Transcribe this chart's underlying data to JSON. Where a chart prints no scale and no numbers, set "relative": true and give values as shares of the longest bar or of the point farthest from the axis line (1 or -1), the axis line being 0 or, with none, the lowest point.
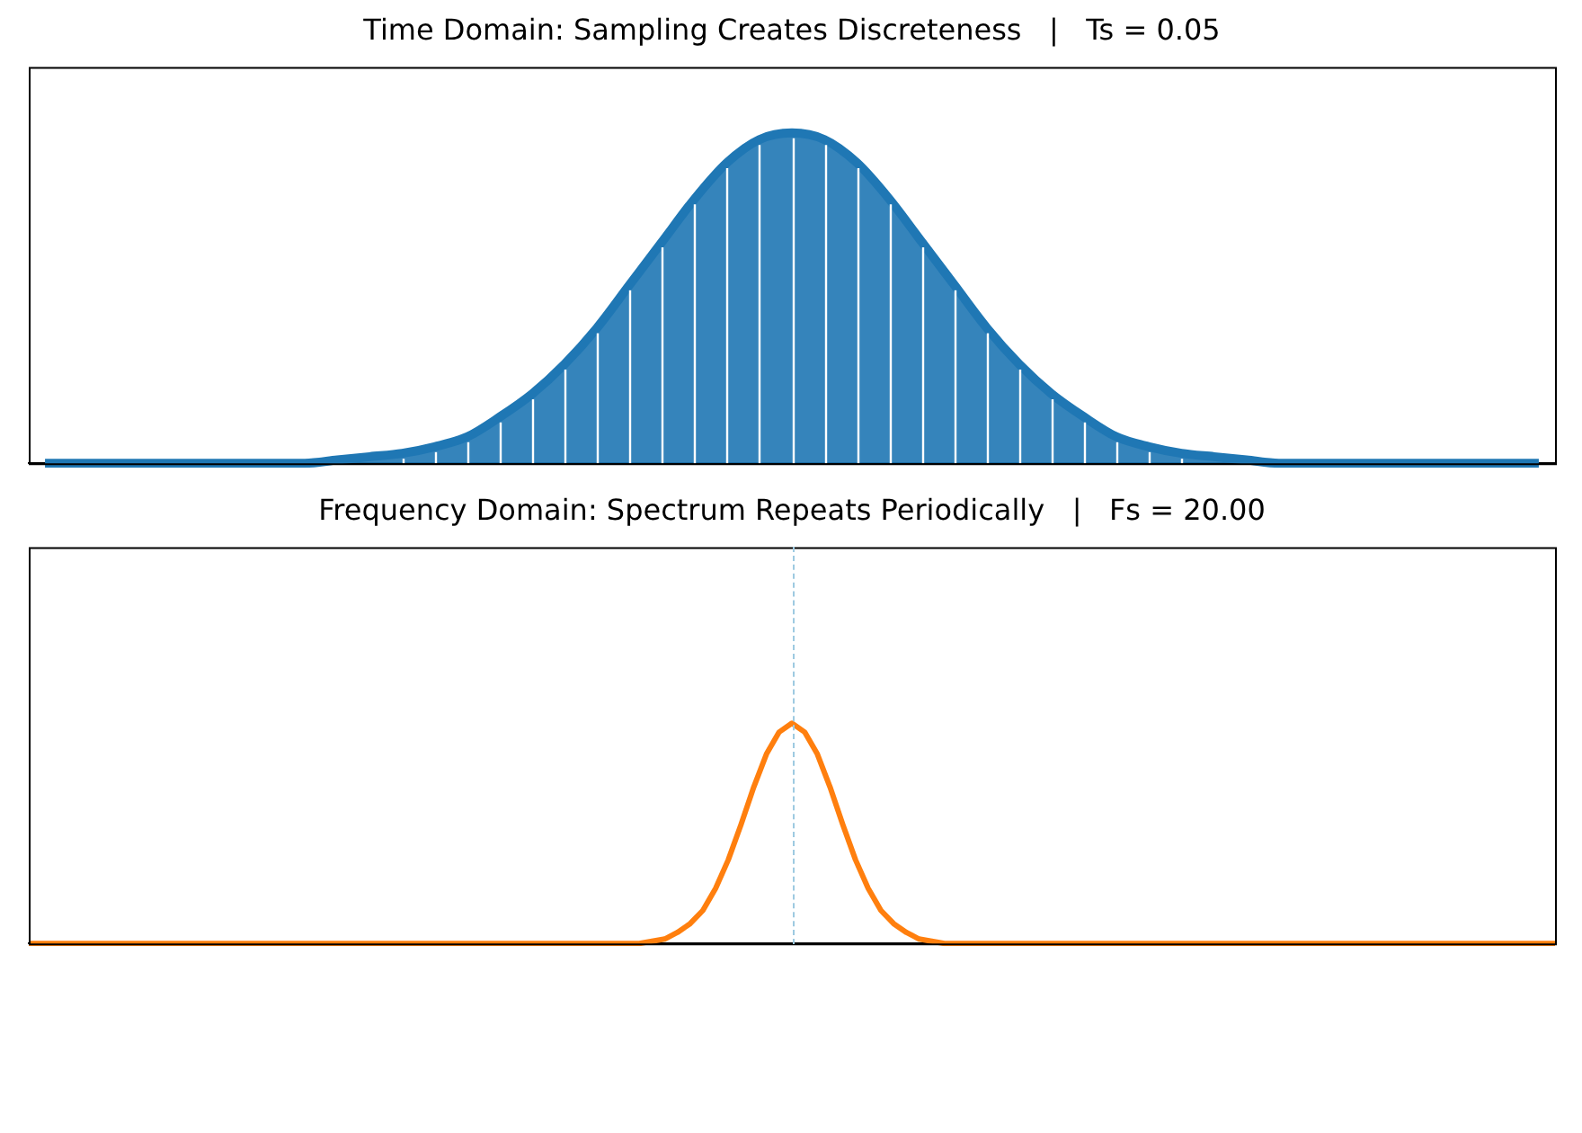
{
  "chart_data": [
    {
      "type": "area",
      "title": "Time Domain: Sampling Creates Discreteness   |   Ts = 0.05",
      "relative": true,
      "grid": "x",
      "color": "#1f77b4",
      "categories": [
        null,
        null,
        null,
        null,
        null,
        null,
        null,
        null,
        null,
        null,
        null,
        null,
        null,
        null,
        null,
        null,
        null,
        null,
        null,
        null,
        null,
        null,
        null,
        null,
        null,
        null,
        null,
        null,
        null,
        null,
        null,
        null,
        null,
        null,
        null,
        null,
        null,
        null,
        null,
        null,
        null,
        null,
        null,
        null,
        null,
        null,
        null
      ],
      "values": [
        0,
        0,
        0,
        0,
        0,
        0,
        0,
        0,
        0,
        0.01,
        0.02,
        0.03,
        0.05,
        0.08,
        0.14,
        0.21,
        0.3,
        0.41,
        0.54,
        0.67,
        0.8,
        0.91,
        0.98,
        1,
        0.98,
        0.91,
        0.8,
        0.67,
        0.54,
        0.41,
        0.3,
        0.21,
        0.14,
        0.08,
        0.05,
        0.03,
        0.02,
        0.01,
        0,
        0,
        0,
        0,
        0,
        0,
        0,
        0,
        0
      ]
    },
    {
      "type": "line",
      "title": "Frequency Domain: Spectrum Repeats Periodically   |   Fs = 20.00",
      "relative": true,
      "color": "#ff7f0e",
      "categories": [
        null,
        null,
        null,
        null,
        null,
        null,
        null,
        null,
        null,
        null,
        null,
        null,
        null,
        null,
        null,
        null,
        null,
        null,
        null,
        null,
        null,
        null,
        null,
        null,
        null,
        null,
        null,
        null,
        null,
        null,
        null,
        null,
        null,
        null,
        null,
        null,
        null,
        null,
        null,
        null,
        null,
        null,
        null,
        null,
        null,
        null,
        null,
        null,
        null,
        null,
        null,
        null,
        null,
        null,
        null,
        null,
        null,
        null,
        null,
        null,
        null,
        null,
        null,
        null,
        null,
        null,
        null,
        null,
        null,
        null,
        null,
        null,
        null,
        null,
        null,
        null,
        null,
        null,
        null,
        null,
        null,
        null,
        null,
        null,
        null,
        null,
        null,
        null,
        null,
        null,
        null,
        null,
        null,
        null,
        null,
        null,
        null,
        null,
        null,
        null,
        null,
        null,
        null,
        null,
        null,
        null,
        null,
        null,
        null,
        null,
        null,
        null,
        null,
        null,
        null,
        null,
        null,
        null,
        null,
        null,
        null
      ],
      "values": [
        0,
        0,
        0,
        0,
        0,
        0,
        0,
        0,
        0,
        0,
        0,
        0,
        0,
        0,
        0,
        0,
        0,
        0,
        0,
        0,
        0,
        0,
        0,
        0,
        0,
        0,
        0,
        0,
        0,
        0,
        0,
        0,
        0,
        0,
        0,
        0,
        0,
        0,
        0,
        0,
        0,
        0,
        0,
        0,
        0,
        0,
        0,
        0,
        0,
        0.01,
        0.02,
        0.05,
        0.09,
        0.15,
        0.25,
        0.38,
        0.54,
        0.71,
        0.86,
        0.96,
        1,
        0.96,
        0.86,
        0.71,
        0.54,
        0.38,
        0.25,
        0.15,
        0.09,
        0.05,
        0.02,
        0.01,
        0,
        0,
        0,
        0,
        0,
        0,
        0,
        0,
        0,
        0,
        0,
        0,
        0,
        0,
        0,
        0,
        0,
        0,
        0,
        0,
        0,
        0,
        0,
        0,
        0,
        0,
        0,
        0,
        0,
        0,
        0,
        0,
        0,
        0,
        0,
        0,
        0,
        0,
        0,
        0,
        0,
        0,
        0,
        0,
        0,
        0,
        0,
        0,
        0
      ]
    }
  ]
}
